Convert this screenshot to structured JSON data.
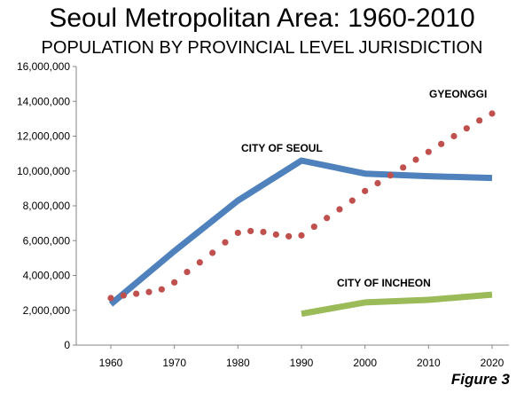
{
  "chart_data": {
    "type": "line",
    "title": "Seoul Metropolitan Area: 1960-2010",
    "subtitle": "POPULATION BY PROVINCIAL LEVEL JURISDICTION",
    "figure_label": "Figure 3",
    "xlabel": "",
    "ylabel": "",
    "xlim": [
      1960,
      2020
    ],
    "ylim": [
      0,
      16000000
    ],
    "x_ticks": [
      "1960",
      "1970",
      "1980",
      "1990",
      "2000",
      "2010",
      "2020"
    ],
    "x_tick_values": [
      1960,
      1970,
      1980,
      1990,
      2000,
      2010,
      2020
    ],
    "y_ticks": [
      "0",
      "2,000,000",
      "4,000,000",
      "6,000,000",
      "8,000,000",
      "10,000,000",
      "12,000,000",
      "14,000,000",
      "16,000,000"
    ],
    "y_tick_values": [
      0,
      2000000,
      4000000,
      6000000,
      8000000,
      10000000,
      12000000,
      14000000,
      16000000
    ],
    "grid": false,
    "legend": "none",
    "series": [
      {
        "name": "CITY OF SEOUL",
        "style": "solid",
        "color": "#4f81bd",
        "x": [
          1960,
          1970,
          1980,
          1990,
          2000,
          2010,
          2020
        ],
        "values": [
          2350000,
          5400000,
          8300000,
          10600000,
          9850000,
          9700000,
          9600000
        ]
      },
      {
        "name": "GYEONGGI",
        "style": "dotted",
        "color": "#c0504d",
        "x": [
          1960,
          1962,
          1964,
          1966,
          1968,
          1970,
          1972,
          1974,
          1976,
          1978,
          1980,
          1982,
          1984,
          1986,
          1988,
          1990,
          1992,
          1994,
          1996,
          1998,
          2000,
          2002,
          2004,
          2006,
          2008,
          2010,
          2012,
          2014,
          2016,
          2018,
          2020
        ],
        "values": [
          2700000,
          2850000,
          2950000,
          3050000,
          3200000,
          3600000,
          4200000,
          4750000,
          5300000,
          5900000,
          6450000,
          6550000,
          6500000,
          6350000,
          6250000,
          6300000,
          6800000,
          7300000,
          7800000,
          8300000,
          8850000,
          9300000,
          9750000,
          10200000,
          10650000,
          11100000,
          11550000,
          12000000,
          12450000,
          12900000,
          13300000
        ]
      },
      {
        "name": "CITY OF INCHEON",
        "style": "solid",
        "color": "#9bbb59",
        "x": [
          1990,
          2000,
          2010,
          2020
        ],
        "values": [
          1800000,
          2450000,
          2600000,
          2900000
        ]
      }
    ]
  }
}
